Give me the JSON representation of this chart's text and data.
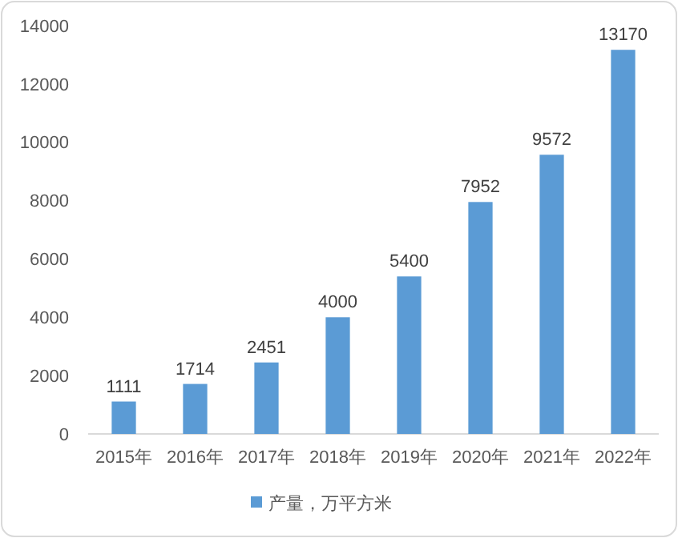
{
  "chart_data": {
    "type": "bar",
    "categories": [
      "2015年",
      "2016年",
      "2017年",
      "2018年",
      "2019年",
      "2020年",
      "2021年",
      "2022年"
    ],
    "series": [
      {
        "name": "产量，万平方米",
        "color": "#5b9bd5",
        "values": [
          1111,
          1714,
          2451,
          4000,
          5400,
          7952,
          9572,
          13170
        ]
      }
    ],
    "ylim": [
      0,
      14000
    ],
    "yticks": [
      0,
      2000,
      4000,
      6000,
      8000,
      10000,
      12000,
      14000
    ],
    "data_labels": true,
    "legend": "bottom",
    "grid": false
  }
}
